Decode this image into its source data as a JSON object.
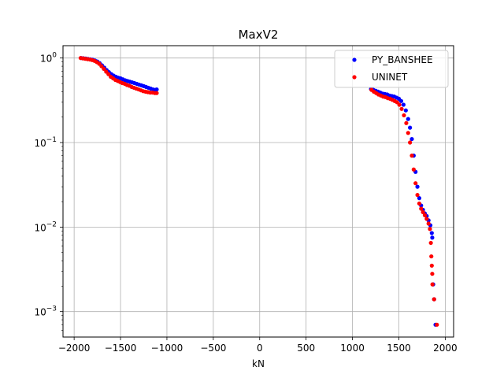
{
  "chart_data": {
    "type": "scatter",
    "title": "MaxV2",
    "xlabel": "kN",
    "ylabel": "",
    "xlim": [
      -2120,
      2090
    ],
    "ylim": [
      0.0005,
      1.4
    ],
    "yscale": "log",
    "grid": true,
    "legend_position": "top-right",
    "x_ticks": [
      -2000,
      -1500,
      -1000,
      -500,
      0,
      500,
      1000,
      1500,
      2000
    ],
    "x_tick_labels": [
      "−2000",
      "−1500",
      "−1000",
      "−500",
      "0",
      "500",
      "1000",
      "1500",
      "2000"
    ],
    "y_ticks": [
      0.001,
      0.01,
      0.1,
      1
    ],
    "y_tick_labels": [
      {
        "base": "10",
        "exp": "−3"
      },
      {
        "base": "10",
        "exp": "−2"
      },
      {
        "base": "10",
        "exp": "−1"
      },
      {
        "base": "10",
        "exp": "0"
      }
    ],
    "series": [
      {
        "name": "PY_BANSHEE",
        "color": "#0000ff",
        "points": [
          [
            -1925,
            1.0
          ],
          [
            -1900,
            0.995
          ],
          [
            -1875,
            0.985
          ],
          [
            -1850,
            0.975
          ],
          [
            -1825,
            0.965
          ],
          [
            -1800,
            0.955
          ],
          [
            -1775,
            0.935
          ],
          [
            -1750,
            0.91
          ],
          [
            -1725,
            0.87
          ],
          [
            -1700,
            0.82
          ],
          [
            -1675,
            0.77
          ],
          [
            -1650,
            0.72
          ],
          [
            -1625,
            0.68
          ],
          [
            -1600,
            0.645
          ],
          [
            -1575,
            0.62
          ],
          [
            -1550,
            0.6
          ],
          [
            -1525,
            0.585
          ],
          [
            -1500,
            0.575
          ],
          [
            -1475,
            0.56
          ],
          [
            -1450,
            0.545
          ],
          [
            -1425,
            0.535
          ],
          [
            -1400,
            0.525
          ],
          [
            -1375,
            0.515
          ],
          [
            -1350,
            0.505
          ],
          [
            -1325,
            0.495
          ],
          [
            -1300,
            0.485
          ],
          [
            -1275,
            0.475
          ],
          [
            -1250,
            0.465
          ],
          [
            -1225,
            0.455
          ],
          [
            -1200,
            0.445
          ],
          [
            -1175,
            0.435
          ],
          [
            -1150,
            0.425
          ],
          [
            -1125,
            0.42
          ],
          [
            -1110,
            0.425
          ],
          [
            1200,
            0.43
          ],
          [
            1225,
            0.42
          ],
          [
            1250,
            0.41
          ],
          [
            1275,
            0.4
          ],
          [
            1300,
            0.39
          ],
          [
            1325,
            0.38
          ],
          [
            1350,
            0.375
          ],
          [
            1375,
            0.37
          ],
          [
            1400,
            0.36
          ],
          [
            1425,
            0.355
          ],
          [
            1450,
            0.35
          ],
          [
            1475,
            0.34
          ],
          [
            1500,
            0.33
          ],
          [
            1525,
            0.31
          ],
          [
            1550,
            0.28
          ],
          [
            1575,
            0.24
          ],
          [
            1600,
            0.19
          ],
          [
            1620,
            0.15
          ],
          [
            1640,
            0.11
          ],
          [
            1660,
            0.07
          ],
          [
            1680,
            0.045
          ],
          [
            1700,
            0.03
          ],
          [
            1720,
            0.022
          ],
          [
            1740,
            0.018
          ],
          [
            1760,
            0.016
          ],
          [
            1780,
            0.0145
          ],
          [
            1800,
            0.0135
          ],
          [
            1820,
            0.012
          ],
          [
            1840,
            0.0105
          ],
          [
            1855,
            0.0085
          ],
          [
            1860,
            0.0075
          ],
          [
            1870,
            0.0021
          ],
          [
            1880,
            0.0014
          ],
          [
            1895,
            0.0007
          ]
        ]
      },
      {
        "name": "UNINET",
        "color": "#ff0000",
        "points": [
          [
            -1930,
            1.0
          ],
          [
            -1905,
            0.99
          ],
          [
            -1880,
            0.98
          ],
          [
            -1855,
            0.97
          ],
          [
            -1830,
            0.96
          ],
          [
            -1805,
            0.945
          ],
          [
            -1780,
            0.925
          ],
          [
            -1755,
            0.895
          ],
          [
            -1730,
            0.855
          ],
          [
            -1705,
            0.8
          ],
          [
            -1680,
            0.745
          ],
          [
            -1655,
            0.69
          ],
          [
            -1630,
            0.645
          ],
          [
            -1605,
            0.6
          ],
          [
            -1580,
            0.575
          ],
          [
            -1555,
            0.55
          ],
          [
            -1530,
            0.535
          ],
          [
            -1505,
            0.52
          ],
          [
            -1480,
            0.505
          ],
          [
            -1455,
            0.495
          ],
          [
            -1430,
            0.48
          ],
          [
            -1405,
            0.47
          ],
          [
            -1380,
            0.455
          ],
          [
            -1355,
            0.445
          ],
          [
            -1330,
            0.435
          ],
          [
            -1305,
            0.425
          ],
          [
            -1280,
            0.415
          ],
          [
            -1255,
            0.405
          ],
          [
            -1230,
            0.4
          ],
          [
            -1205,
            0.395
          ],
          [
            -1180,
            0.39
          ],
          [
            -1155,
            0.39
          ],
          [
            -1130,
            0.385
          ],
          [
            -1110,
            0.385
          ],
          [
            1205,
            0.42
          ],
          [
            1230,
            0.4
          ],
          [
            1255,
            0.385
          ],
          [
            1280,
            0.37
          ],
          [
            1305,
            0.36
          ],
          [
            1330,
            0.35
          ],
          [
            1355,
            0.345
          ],
          [
            1380,
            0.335
          ],
          [
            1405,
            0.33
          ],
          [
            1430,
            0.32
          ],
          [
            1455,
            0.31
          ],
          [
            1480,
            0.3
          ],
          [
            1505,
            0.28
          ],
          [
            1530,
            0.25
          ],
          [
            1555,
            0.21
          ],
          [
            1580,
            0.17
          ],
          [
            1600,
            0.13
          ],
          [
            1620,
            0.1
          ],
          [
            1640,
            0.07
          ],
          [
            1660,
            0.048
          ],
          [
            1680,
            0.033
          ],
          [
            1700,
            0.024
          ],
          [
            1720,
            0.019
          ],
          [
            1740,
            0.0165
          ],
          [
            1760,
            0.015
          ],
          [
            1780,
            0.0138
          ],
          [
            1800,
            0.0125
          ],
          [
            1820,
            0.011
          ],
          [
            1835,
            0.0095
          ],
          [
            1845,
            0.0065
          ],
          [
            1850,
            0.0045
          ],
          [
            1855,
            0.0035
          ],
          [
            1860,
            0.0028
          ],
          [
            1862,
            0.0021
          ],
          [
            1880,
            0.0014
          ],
          [
            1910,
            0.0007
          ]
        ]
      }
    ]
  }
}
